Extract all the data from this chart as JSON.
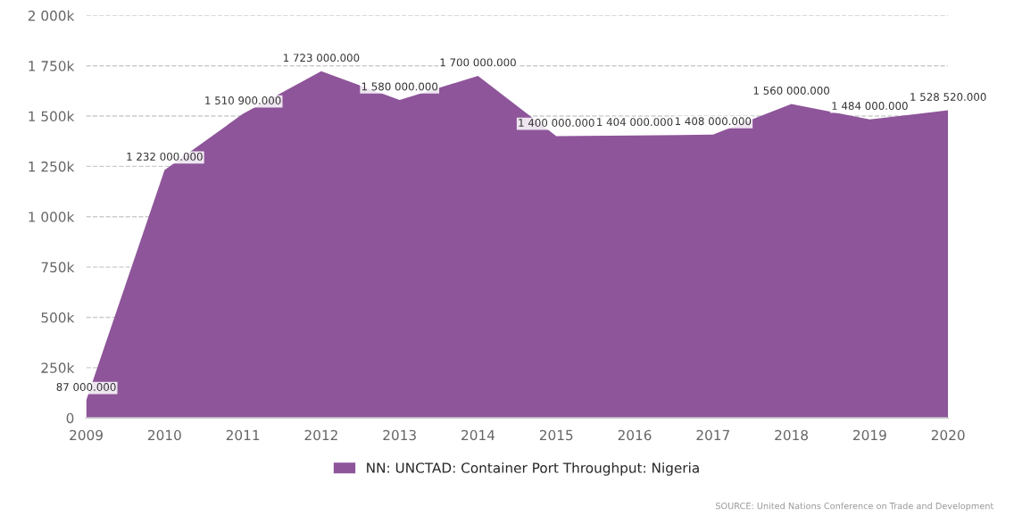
{
  "chart_data": {
    "type": "area",
    "x": [
      2009,
      2010,
      2011,
      2012,
      2013,
      2014,
      2015,
      2016,
      2017,
      2018,
      2019,
      2020
    ],
    "series": [
      {
        "name": "NN: UNCTAD: Container Port Throughput: Nigeria",
        "color": "#8e559a",
        "values": [
          87000,
          1232000,
          1510900,
          1723000,
          1580000,
          1700000,
          1400000,
          1404000,
          1408000,
          1560000,
          1484000,
          1528520
        ],
        "value_labels": [
          "87 000.000",
          "1 232 000.000",
          "1 510 900.000",
          "1 723 000.000",
          "1 580 000.000",
          "1 700 000.000",
          "1 400 000.000",
          "1 404 000.000",
          "1 408 000.000",
          "1 560 000.000",
          "1 484 000.000",
          "1 528 520.000"
        ]
      }
    ],
    "xlim": [
      2009,
      2020
    ],
    "xticks": [
      2009,
      2010,
      2011,
      2012,
      2013,
      2014,
      2015,
      2016,
      2017,
      2018,
      2019,
      2020
    ],
    "ylim": [
      0,
      2000000
    ],
    "yticks": [
      0,
      {
        "value": 250000,
        "label": "250k"
      },
      {
        "value": 500000,
        "label": "500k"
      },
      {
        "value": 750000,
        "label": "750k"
      },
      {
        "value": 1000000,
        "label": "1 000k"
      },
      {
        "value": 1250000,
        "label": "1 250k"
      },
      {
        "value": 1500000,
        "label": "1 500k"
      },
      {
        "value": 1750000,
        "label": "1 750k"
      },
      {
        "value": 2000000,
        "label": "2 000k"
      }
    ],
    "grid": "y",
    "legend": "bottom",
    "annotations": [
      "SOURCE: United Nations Conference on Trade and Development"
    ]
  }
}
